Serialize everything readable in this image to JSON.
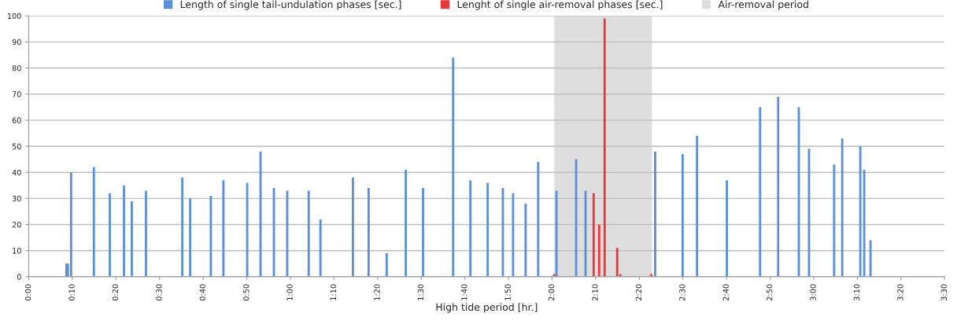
{
  "chart_data": {
    "type": "bar",
    "xlabel": "High tide period [hr.]",
    "series": [
      {
        "name": "Length of single tail-undulation phases [sec.]",
        "color": "#5b8fd6",
        "x": [
          0.144,
          0.15,
          0.162,
          0.249,
          0.31,
          0.364,
          0.394,
          0.448,
          0.587,
          0.617,
          0.696,
          0.744,
          0.835,
          0.886,
          0.937,
          0.988,
          1.07,
          1.115,
          1.239,
          1.299,
          1.368,
          1.441,
          1.507,
          1.622,
          1.688,
          1.754,
          1.812,
          1.851,
          1.899,
          1.947,
          2.017,
          2.092,
          2.128,
          2.394,
          2.499,
          2.554,
          2.668,
          2.795,
          2.864,
          2.943,
          2.982,
          3.078,
          3.109,
          3.178,
          3.193,
          3.217
        ],
        "values": [
          5,
          5,
          40,
          42,
          32,
          35,
          29,
          33,
          38,
          30,
          31,
          37,
          36,
          48,
          34,
          33,
          33,
          22,
          38,
          34,
          9,
          41,
          34,
          84,
          37,
          36,
          34,
          32,
          28,
          44,
          33,
          45,
          33,
          48,
          47,
          54,
          37,
          65,
          69,
          65,
          49,
          43,
          53,
          50,
          41,
          14
        ]
      },
      {
        "name": "Lenght of single air-removal phases [sec.]",
        "color": "#e8393a",
        "x": [
          2.008,
          2.159,
          2.18,
          2.201,
          2.249,
          2.261,
          2.379
        ],
        "values": [
          1,
          32,
          20,
          99,
          11,
          1,
          1
        ]
      }
    ],
    "bands": [
      {
        "axis": "x",
        "from": 2.008,
        "to": 2.382,
        "label": "Air-removal period",
        "color": "#dedede"
      }
    ],
    "xlim": [
      0,
      3.5
    ],
    "xticks": [
      {
        "value": 0,
        "label": "0:00"
      },
      {
        "value": 0.1667,
        "label": "0:10"
      },
      {
        "value": 0.3333,
        "label": "0:20"
      },
      {
        "value": 0.5,
        "label": "0:30"
      },
      {
        "value": 0.6667,
        "label": "0:40"
      },
      {
        "value": 0.8333,
        "label": "0:50"
      },
      {
        "value": 1,
        "label": "1:00"
      },
      {
        "value": 1.1667,
        "label": "1:10"
      },
      {
        "value": 1.3333,
        "label": "1:20"
      },
      {
        "value": 1.5,
        "label": "1:30"
      },
      {
        "value": 1.6667,
        "label": "1:40"
      },
      {
        "value": 1.8333,
        "label": "1:50"
      },
      {
        "value": 2,
        "label": "2:00"
      },
      {
        "value": 2.1667,
        "label": "2:10"
      },
      {
        "value": 2.3333,
        "label": "2:20"
      },
      {
        "value": 2.5,
        "label": "2:30"
      },
      {
        "value": 2.6667,
        "label": "2:40"
      },
      {
        "value": 2.8333,
        "label": "2:50"
      },
      {
        "value": 3,
        "label": "3:00"
      },
      {
        "value": 3.1667,
        "label": "3:10"
      },
      {
        "value": 3.3333,
        "label": "3:20"
      },
      {
        "value": 3.5,
        "label": "3:30"
      }
    ],
    "ylim": [
      0,
      100
    ],
    "yticks": [
      0,
      10,
      20,
      30,
      40,
      50,
      60,
      70,
      80,
      90,
      100
    ],
    "grid": "y",
    "legend": "top"
  }
}
